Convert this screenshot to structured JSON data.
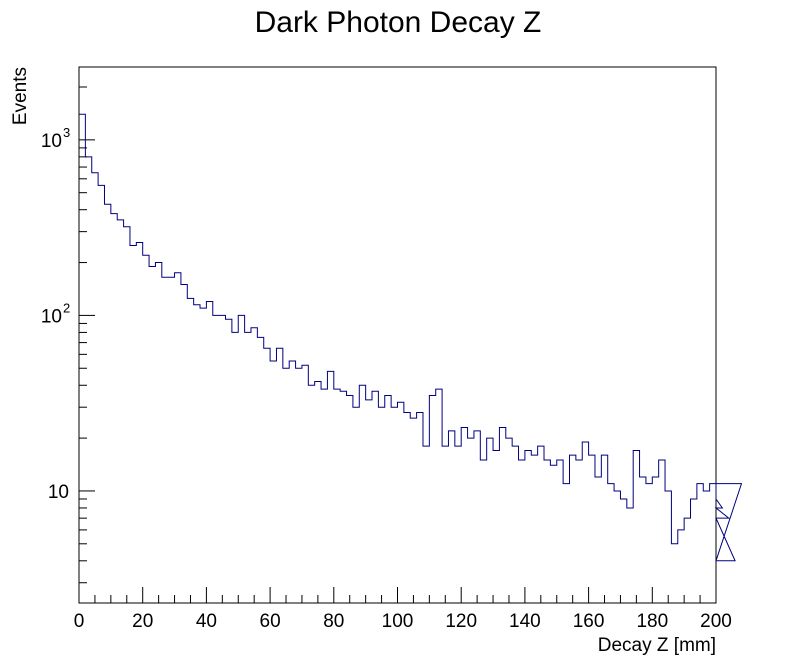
{
  "chart_data": {
    "type": "histogram",
    "title": "Dark Photon Decay Z",
    "xlabel": "Decay Z [mm]",
    "ylabel": "Events",
    "xlim": [
      0,
      200
    ],
    "ylim": [
      2.3,
      2600
    ],
    "yscale": "log",
    "grid": false,
    "line_color": "#000080",
    "x_major_ticks": [
      0,
      20,
      40,
      60,
      80,
      100,
      120,
      140,
      160,
      180,
      200
    ],
    "x_tick_labels": [
      "0",
      "20",
      "40",
      "60",
      "80",
      "100",
      "120",
      "140",
      "160",
      "180",
      "200"
    ],
    "y_tick_labels": [
      {
        "value": 10,
        "base": "10",
        "exp": ""
      },
      {
        "value": 100,
        "base": "10",
        "exp": "2"
      },
      {
        "value": 1000,
        "base": "10",
        "exp": "3"
      }
    ],
    "bin_width": 2,
    "bin_edges_start": 0,
    "values": [
      1400,
      800,
      650,
      550,
      430,
      380,
      350,
      320,
      250,
      260,
      220,
      190,
      200,
      165,
      165,
      175,
      150,
      125,
      115,
      110,
      120,
      100,
      100,
      95,
      80,
      100,
      80,
      85,
      75,
      65,
      55,
      65,
      50,
      55,
      50,
      52,
      40,
      42,
      38,
      48,
      38,
      37,
      35,
      30,
      40,
      33,
      37,
      30,
      35,
      30,
      32,
      28,
      26,
      28,
      18,
      35,
      38,
      18,
      22,
      18,
      23,
      20,
      22,
      15,
      20,
      17,
      23,
      20,
      18,
      15,
      17,
      16,
      18,
      15,
      14,
      15,
      11,
      16,
      15,
      19,
      16,
      12,
      16,
      11,
      10,
      9,
      8,
      17,
      12,
      11,
      12,
      15,
      10,
      5,
      6,
      7,
      9,
      11,
      10,
      11,
      9,
      8,
      7,
      4,
      11
    ]
  }
}
